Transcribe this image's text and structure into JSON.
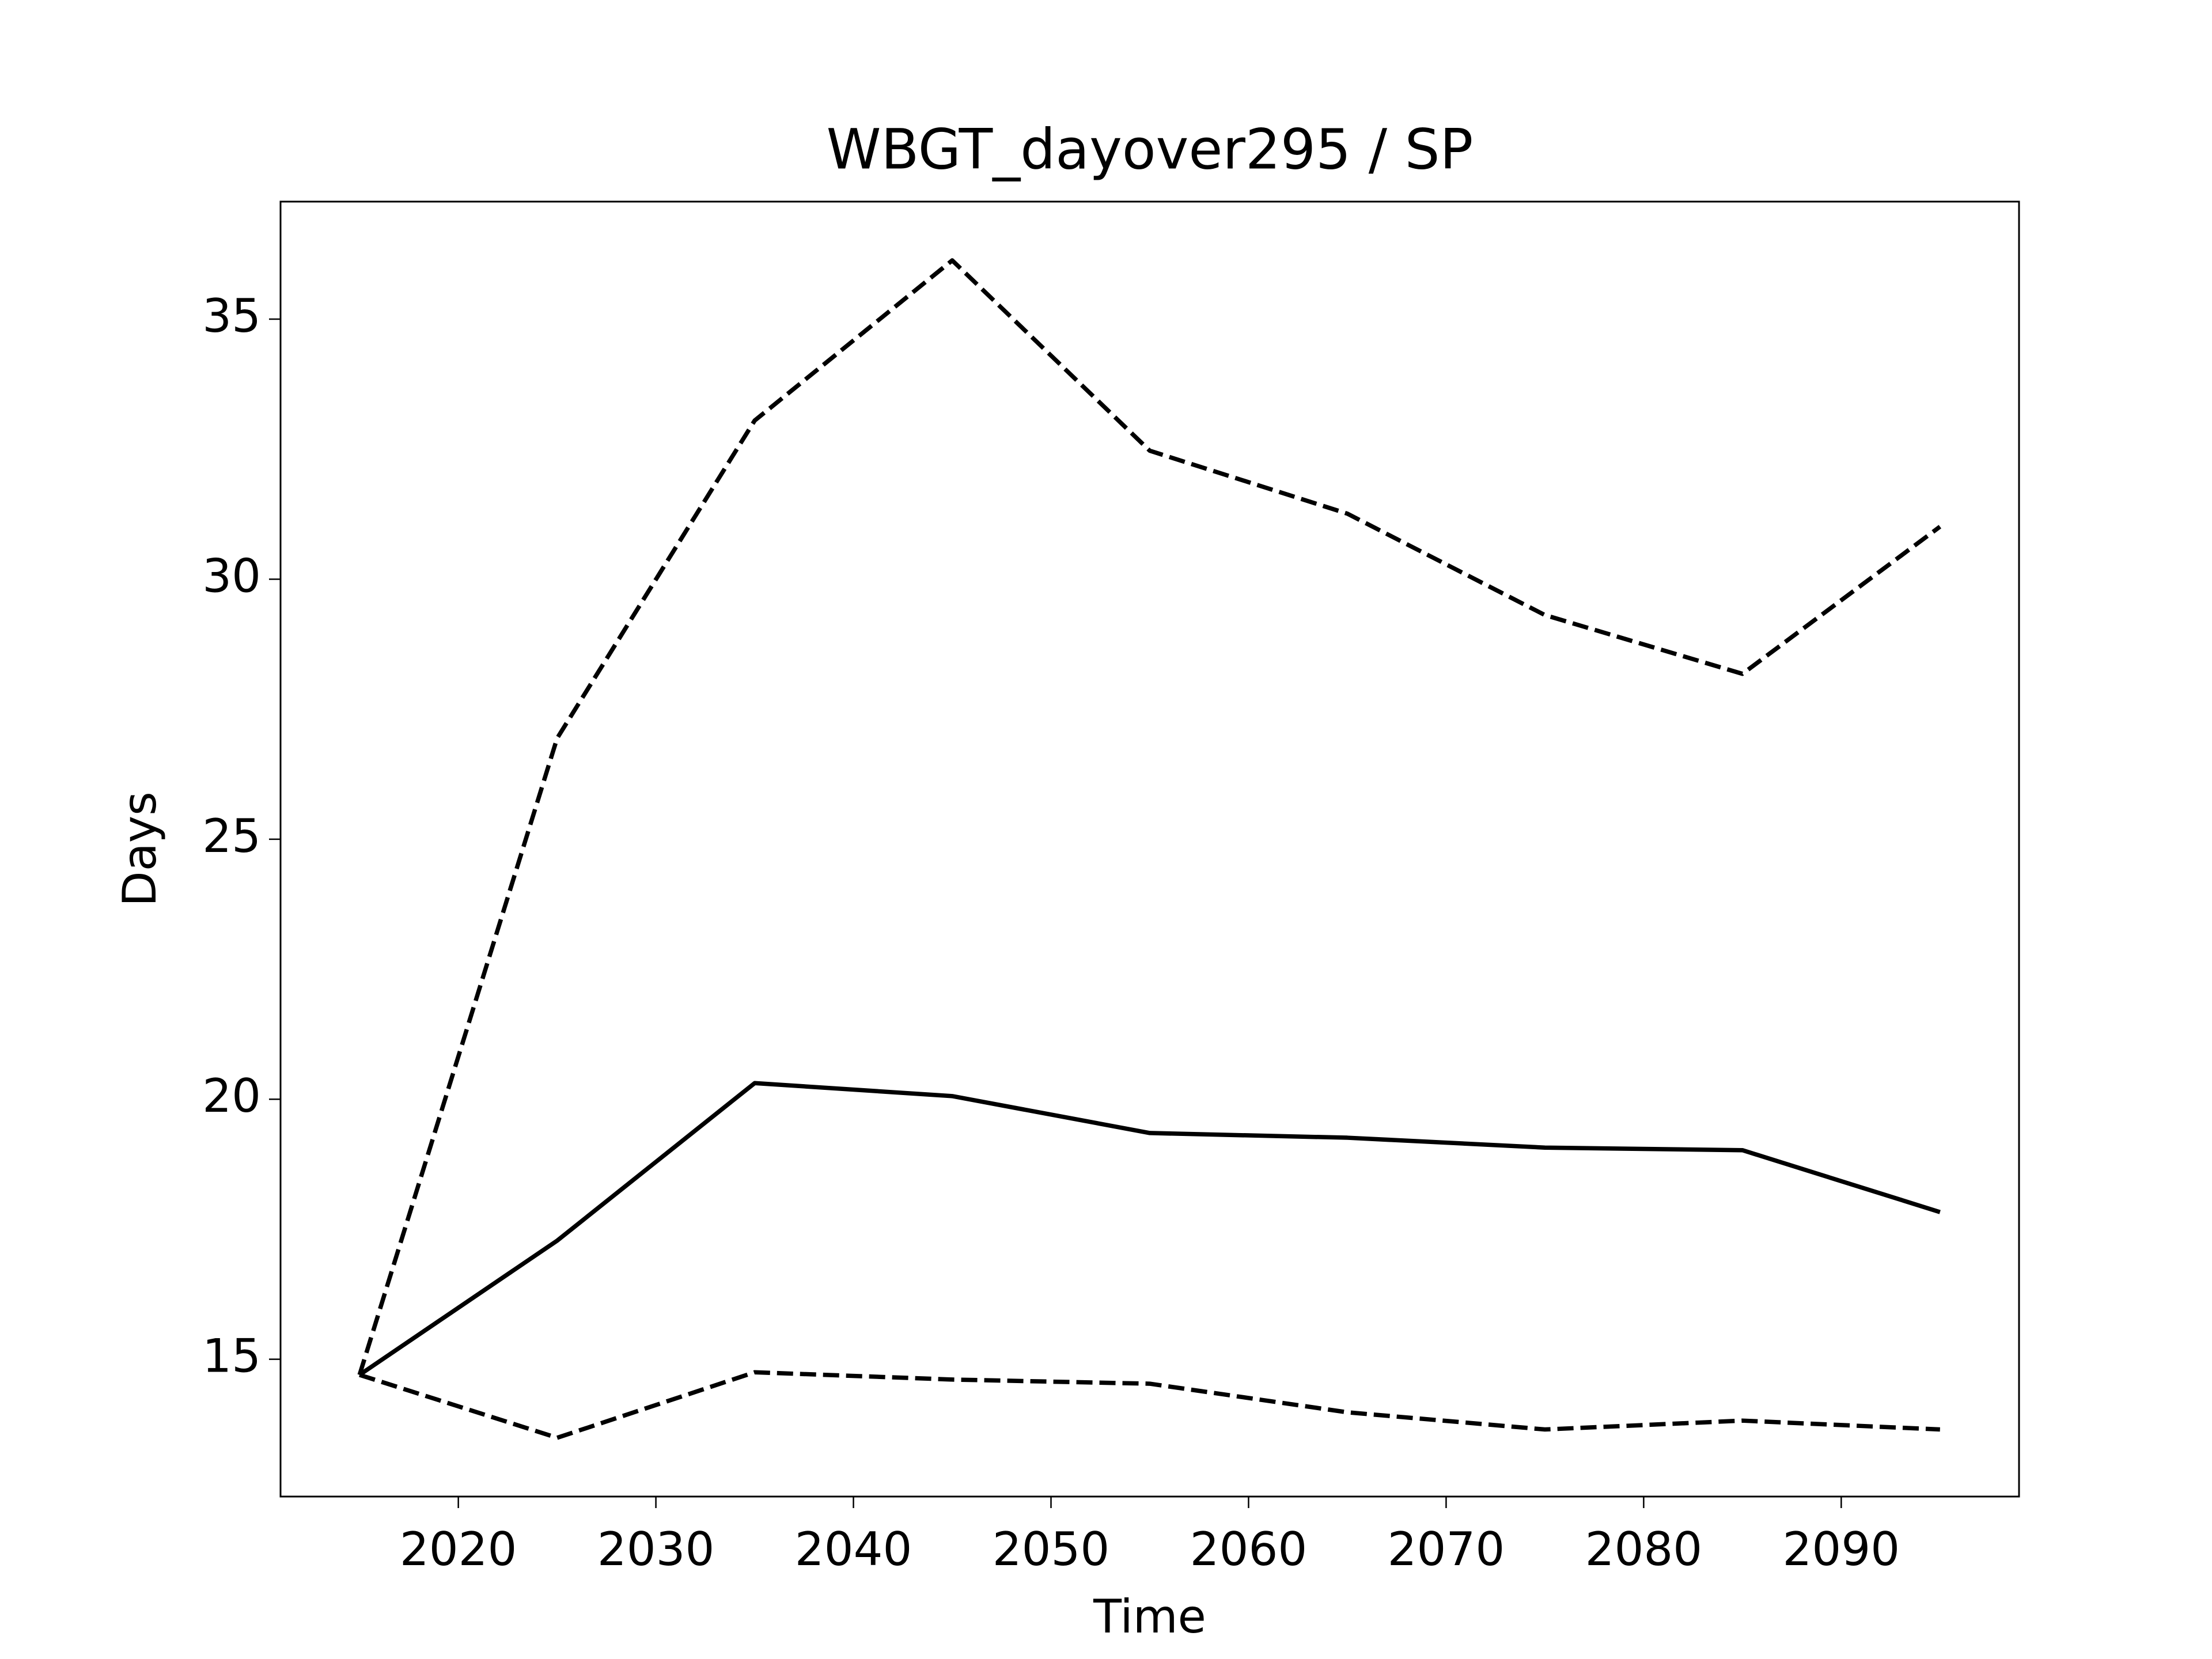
{
  "chart_data": {
    "type": "line",
    "title": "WBGT_dayover295 / SP",
    "xlabel": "Time",
    "ylabel": "Days",
    "x": [
      2015,
      2025,
      2035,
      2045,
      2055,
      2065,
      2075,
      2085,
      2095
    ],
    "series": [
      {
        "color": "#000000",
        "linestyle": "solid",
        "values": [
          14.7,
          17.28,
          20.31,
          20.06,
          19.35,
          19.26,
          19.07,
          19.02,
          17.83
        ]
      },
      {
        "color": "#000000",
        "linestyle": "dashed",
        "values": [
          14.7,
          26.94,
          33.05,
          36.13,
          32.47,
          31.26,
          29.31,
          28.18,
          31.01
        ]
      },
      {
        "color": "#000000",
        "linestyle": "dashed",
        "values": [
          14.7,
          13.49,
          14.75,
          14.61,
          14.53,
          13.98,
          13.65,
          13.82,
          13.65
        ]
      }
    ],
    "xlim": [
      2011,
      2099
    ],
    "xticks": [
      2020,
      2030,
      2040,
      2050,
      2060,
      2070,
      2080,
      2090
    ],
    "ylim": [
      12.36,
      37.26
    ],
    "yticks": [
      15,
      20,
      25,
      30,
      35
    ],
    "grid": false
  }
}
